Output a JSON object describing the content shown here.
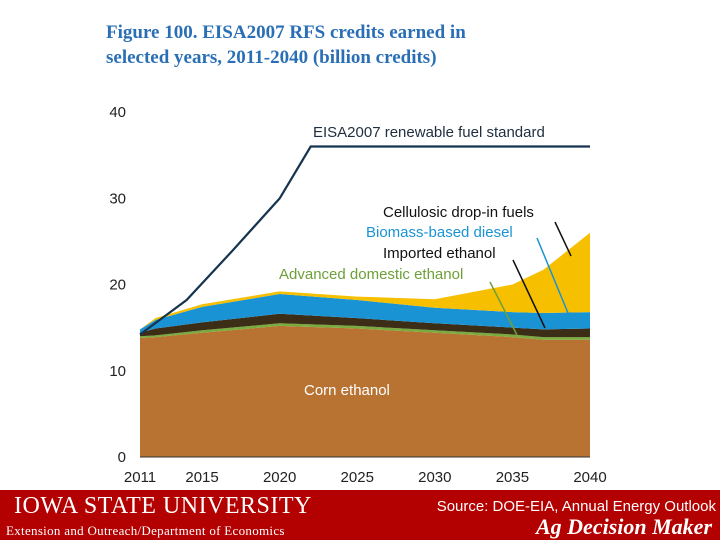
{
  "chart_data": {
    "type": "area",
    "title_line1": "Figure 100. EISA2007 RFS credits earned in",
    "title_line2": "selected years, 2011-2040 (billion credits)",
    "x": [
      2011,
      2012,
      2015,
      2020,
      2025,
      2030,
      2035,
      2037,
      2040
    ],
    "xticks": [
      2011,
      2015,
      2020,
      2025,
      2030,
      2035,
      2040
    ],
    "yticks": [
      0,
      10,
      20,
      30,
      40
    ],
    "xlim": [
      2011,
      2040
    ],
    "ylim": [
      0,
      40
    ],
    "grid": false,
    "series": [
      {
        "name": "Corn ethanol",
        "color": "#b87333",
        "values": [
          13.8,
          13.9,
          14.4,
          15.2,
          14.9,
          14.4,
          13.9,
          13.6,
          13.6
        ]
      },
      {
        "name": "Advanced domestic ethanol",
        "color": "#7aab3e",
        "values": [
          0.2,
          0.2,
          0.3,
          0.3,
          0.3,
          0.3,
          0.3,
          0.3,
          0.3
        ]
      },
      {
        "name": "Imported ethanol",
        "color": "#3b2d16",
        "values": [
          0.4,
          0.8,
          0.9,
          1.1,
          0.9,
          0.8,
          0.8,
          0.9,
          1.0
        ]
      },
      {
        "name": "Biomass-based diesel",
        "color": "#1a93d4",
        "values": [
          0.4,
          1.0,
          1.8,
          2.3,
          2.1,
          1.8,
          1.8,
          1.9,
          1.9
        ]
      },
      {
        "name": "Cellulosic drop-in fuels",
        "color": "#f6bf00",
        "values": [
          0.0,
          0.2,
          0.3,
          0.3,
          0.4,
          1.0,
          3.2,
          5.0,
          9.2
        ]
      }
    ],
    "rfs_line": {
      "name": "EISA2007 renewable fuel standard",
      "color": "#16344f",
      "x": [
        2011,
        2014,
        2017,
        2020,
        2022,
        2040
      ],
      "values": [
        14.2,
        18.2,
        24.0,
        30.0,
        36.0,
        36.0
      ]
    },
    "annotations": {
      "corn": "Corn ethanol",
      "rfs": "EISA2007 renewable fuel standard",
      "cellulosic": "Cellulosic drop-in fuels",
      "biodiesel": "Biomass-based diesel",
      "imported": "Imported ethanol",
      "advanced": "Advanced domestic ethanol"
    }
  },
  "footer": {
    "university": "IOWA STATE UNIVERSITY",
    "extension": "Extension and Outreach/Department of Economics",
    "source": "Source: DOE-EIA, Annual Energy Outlook",
    "brand": "Ag Decision Maker",
    "color": "#b30000"
  }
}
